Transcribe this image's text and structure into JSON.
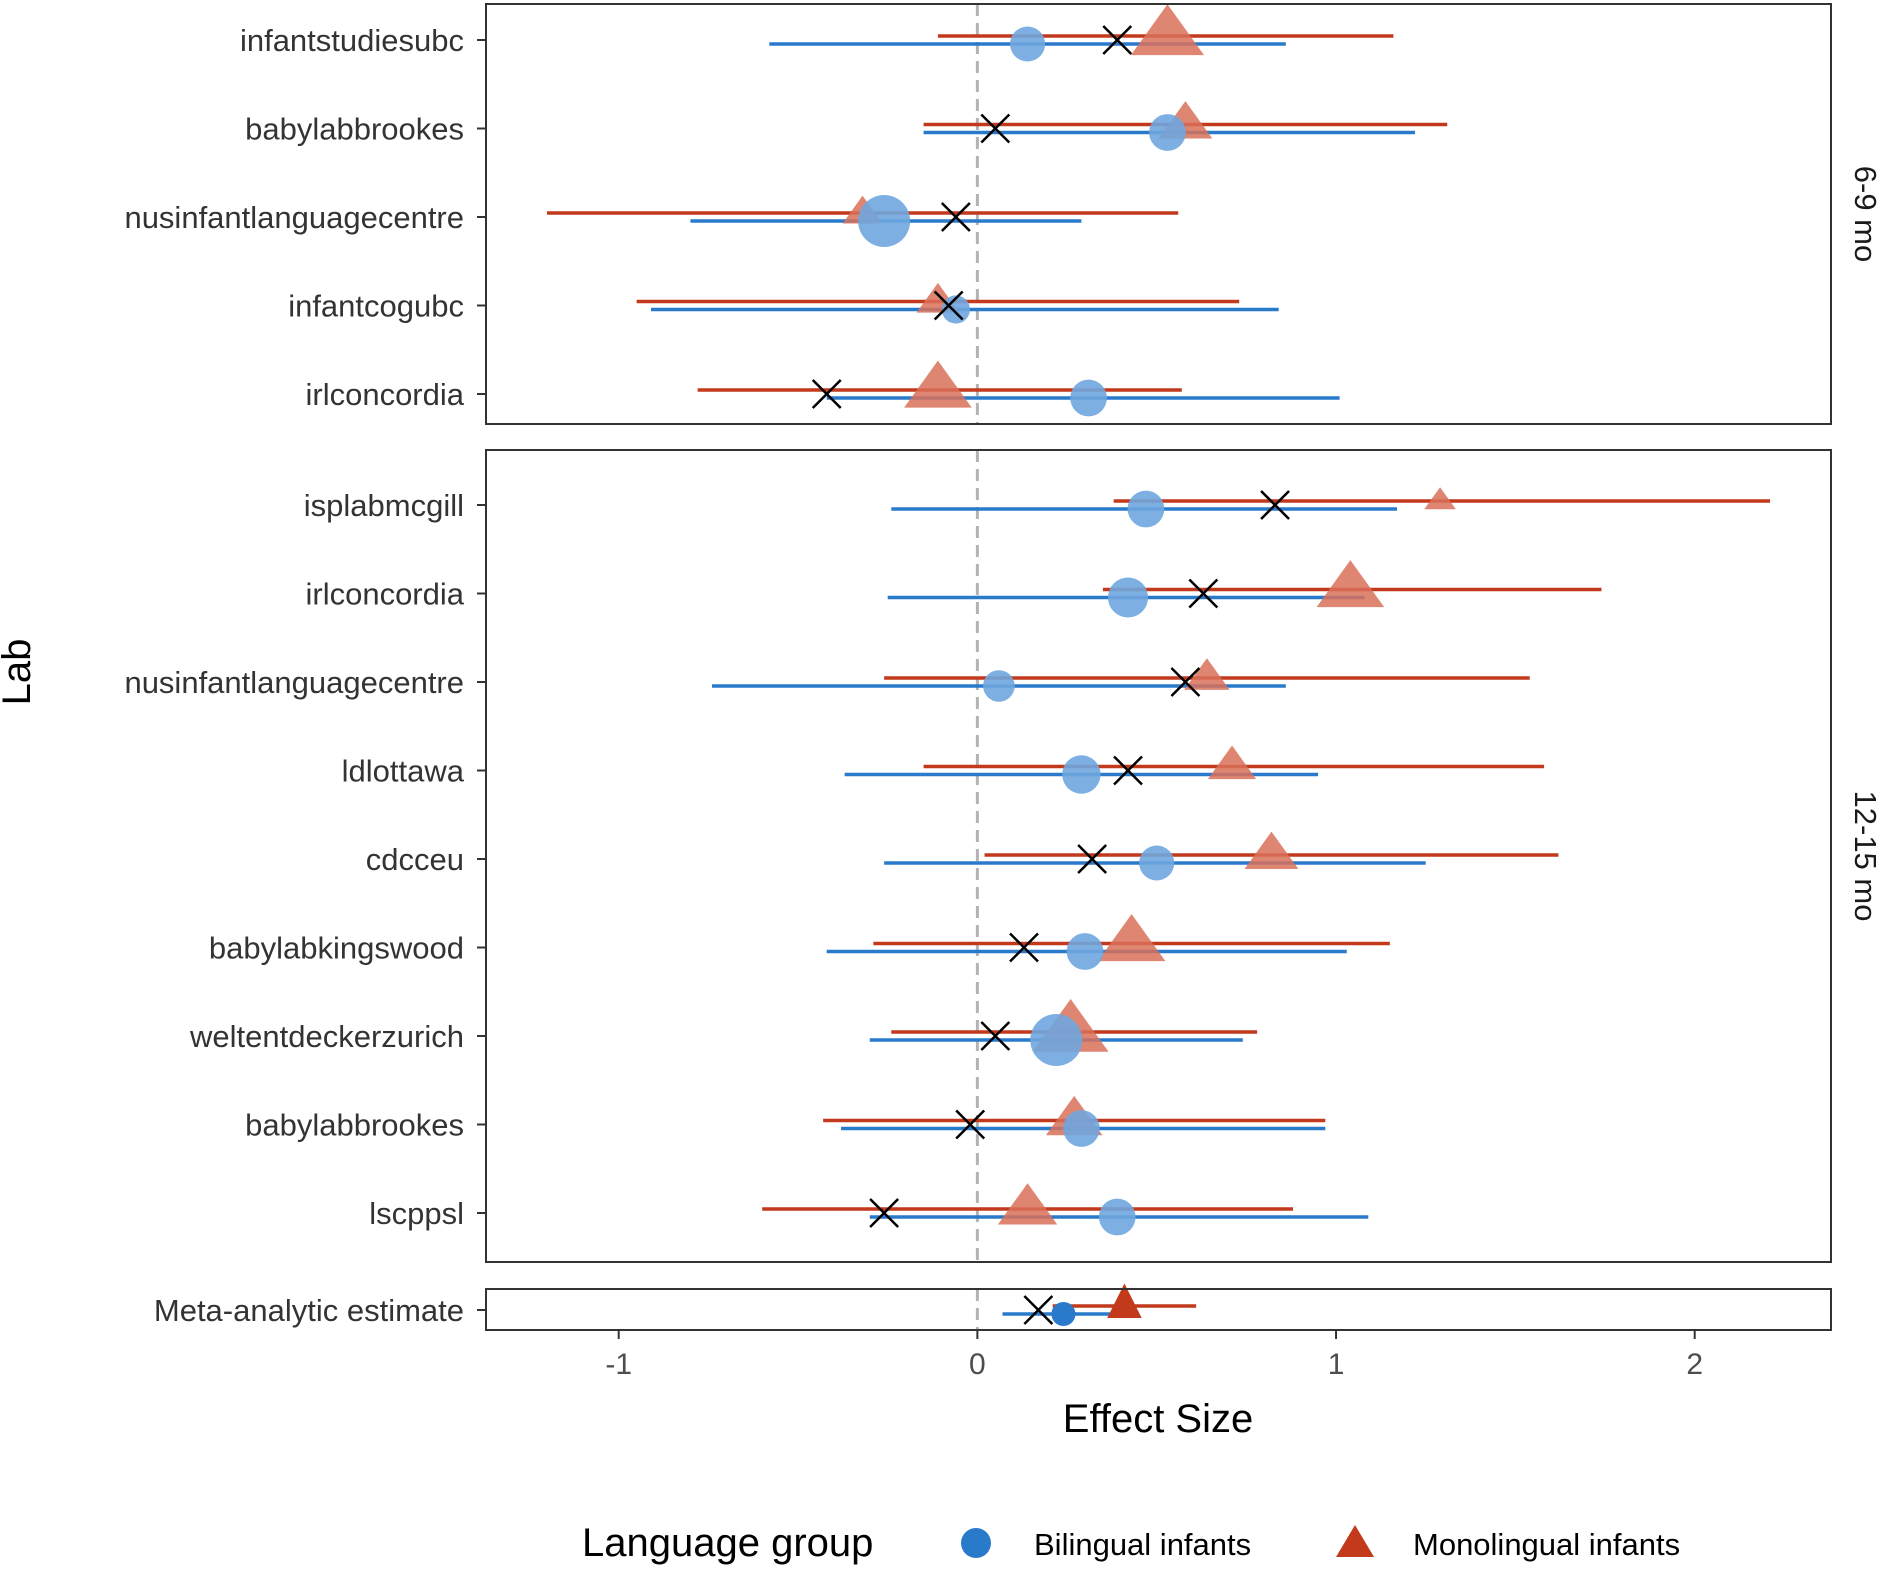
{
  "chart_data": {
    "type": "forest",
    "xlabel": "Effect Size",
    "ylabel": "Lab",
    "xlim": [
      -1.37,
      2.38
    ],
    "xticks": [
      -1,
      0,
      1,
      2
    ],
    "xtick_labels": [
      "-1",
      "0",
      "1",
      "2"
    ],
    "reference_line": 0,
    "grid": false,
    "colors": {
      "bilingual": "#2a7acc",
      "bilingual_light": "#6fa6df",
      "monolingual": "#c2391b",
      "monolingual_light": "#d9715a",
      "combined_marker": "#000000",
      "reference": "#b3b3b3"
    },
    "legend": {
      "title": "Language group",
      "position": "bottom",
      "entries": [
        {
          "key": "bilingual",
          "label": "Bilingual infants",
          "shape": "circle"
        },
        {
          "key": "monolingual",
          "label": "Monolingual infants",
          "shape": "triangle"
        }
      ]
    },
    "panels": [
      {
        "label": "6-9 mo",
        "rows": [
          {
            "lab": "infantstudiesubc",
            "bilingual": {
              "est": 0.14,
              "lo": -0.58,
              "hi": 0.86,
              "size": 0.5
            },
            "monolingual": {
              "est": 0.53,
              "lo": -0.11,
              "hi": 1.16,
              "size": 0.95
            },
            "combined": 0.39
          },
          {
            "lab": "babylabbrookes",
            "bilingual": {
              "est": 0.53,
              "lo": -0.15,
              "hi": 1.22,
              "size": 0.55
            },
            "monolingual": {
              "est": 0.58,
              "lo": -0.15,
              "hi": 1.31,
              "size": 0.6
            },
            "combined": 0.05
          },
          {
            "lab": "nusinfantlanguagecentre",
            "bilingual": {
              "est": -0.26,
              "lo": -0.8,
              "hi": 0.29,
              "size": 1.0
            },
            "monolingual": {
              "est": -0.32,
              "lo": -1.2,
              "hi": 0.56,
              "size": 0.35
            },
            "combined": -0.06
          },
          {
            "lab": "infantcogubc",
            "bilingual": {
              "est": -0.06,
              "lo": -0.91,
              "hi": 0.84,
              "size": 0.3
            },
            "monolingual": {
              "est": -0.11,
              "lo": -0.95,
              "hi": 0.73,
              "size": 0.4
            },
            "combined": -0.08
          },
          {
            "lab": "irlconcordia",
            "bilingual": {
              "est": 0.31,
              "lo": -0.42,
              "hi": 1.01,
              "size": 0.55
            },
            "monolingual": {
              "est": -0.11,
              "lo": -0.78,
              "hi": 0.57,
              "size": 0.85
            },
            "combined": -0.42
          }
        ]
      },
      {
        "label": "12-15 mo",
        "rows": [
          {
            "lab": "isplabmcgill",
            "bilingual": {
              "est": 0.47,
              "lo": -0.24,
              "hi": 1.17,
              "size": 0.55
            },
            "monolingual": {
              "est": 1.29,
              "lo": 0.38,
              "hi": 2.21,
              "size": 0.2
            },
            "combined": 0.83
          },
          {
            "lab": "irlconcordia",
            "bilingual": {
              "est": 0.42,
              "lo": -0.25,
              "hi": 1.08,
              "size": 0.65
            },
            "monolingual": {
              "est": 1.04,
              "lo": 0.35,
              "hi": 1.74,
              "size": 0.85
            },
            "combined": 0.63
          },
          {
            "lab": "nusinfantlanguagecentre",
            "bilingual": {
              "est": 0.06,
              "lo": -0.74,
              "hi": 0.86,
              "size": 0.4
            },
            "monolingual": {
              "est": 0.64,
              "lo": -0.26,
              "hi": 1.54,
              "size": 0.45
            },
            "combined": 0.58
          },
          {
            "lab": "ldlottawa",
            "bilingual": {
              "est": 0.29,
              "lo": -0.37,
              "hi": 0.95,
              "size": 0.6
            },
            "monolingual": {
              "est": 0.71,
              "lo": -0.15,
              "hi": 1.58,
              "size": 0.5
            },
            "combined": 0.42
          },
          {
            "lab": "cdcceu",
            "bilingual": {
              "est": 0.5,
              "lo": -0.26,
              "hi": 1.25,
              "size": 0.5
            },
            "monolingual": {
              "est": 0.82,
              "lo": 0.02,
              "hi": 1.62,
              "size": 0.6
            },
            "combined": 0.32
          },
          {
            "lab": "babylabkingswood",
            "bilingual": {
              "est": 0.3,
              "lo": -0.42,
              "hi": 1.03,
              "size": 0.55
            },
            "monolingual": {
              "est": 0.43,
              "lo": -0.29,
              "hi": 1.15,
              "size": 0.85
            },
            "combined": 0.13
          },
          {
            "lab": "weltentdeckerzurich",
            "bilingual": {
              "est": 0.22,
              "lo": -0.3,
              "hi": 0.74,
              "size": 1.0
            },
            "monolingual": {
              "est": 0.26,
              "lo": -0.24,
              "hi": 0.78,
              "size": 1.0
            },
            "combined": 0.05
          },
          {
            "lab": "babylabbrookes",
            "bilingual": {
              "est": 0.29,
              "lo": -0.38,
              "hi": 0.97,
              "size": 0.55
            },
            "monolingual": {
              "est": 0.27,
              "lo": -0.43,
              "hi": 0.97,
              "size": 0.65
            },
            "combined": -0.02
          },
          {
            "lab": "lscppsl",
            "bilingual": {
              "est": 0.39,
              "lo": -0.3,
              "hi": 1.09,
              "size": 0.55
            },
            "monolingual": {
              "est": 0.14,
              "lo": -0.6,
              "hi": 0.88,
              "size": 0.7
            },
            "combined": -0.26
          }
        ]
      },
      {
        "label": "",
        "rows": [
          {
            "lab": "Meta-analytic estimate",
            "meta": true,
            "bilingual": {
              "est": 0.24,
              "lo": 0.07,
              "hi": 0.41
            },
            "monolingual": {
              "est": 0.41,
              "lo": 0.21,
              "hi": 0.61
            },
            "combined": 0.17
          }
        ]
      }
    ]
  }
}
